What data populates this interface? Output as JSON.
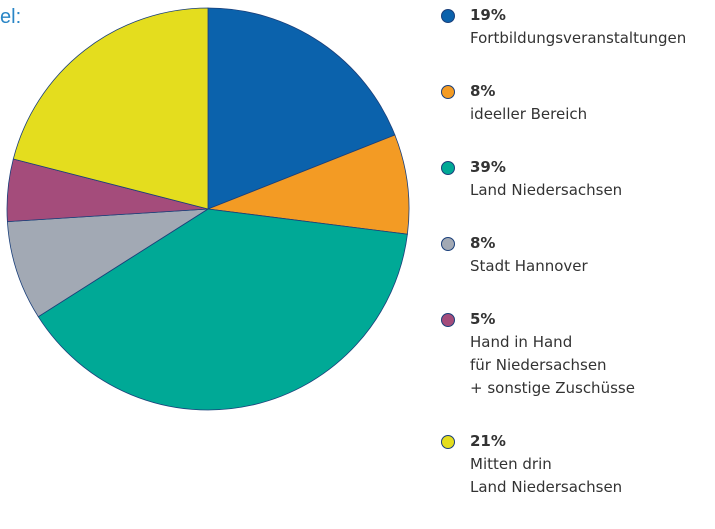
{
  "chart_data": {
    "type": "pie",
    "title": "el:",
    "categories": [
      "Fortbildungsveranstaltungen",
      "ideeller Bereich",
      "Land Niedersachsen",
      "Stadt Hannover",
      "Hand in Hand\nfür Niedersachsen\n+ sonstige Zuschüsse",
      "Mitten drin\nLand Niedersachsen"
    ],
    "values": [
      19,
      8,
      39,
      8,
      5,
      21
    ],
    "value_labels": [
      "19%",
      "8%",
      "39%",
      "8%",
      "5%",
      "21%"
    ],
    "colors": [
      "#0b62ac",
      "#f39b24",
      "#00a996",
      "#a2a9b4",
      "#a44c7b",
      "#e4dd1e"
    ]
  }
}
